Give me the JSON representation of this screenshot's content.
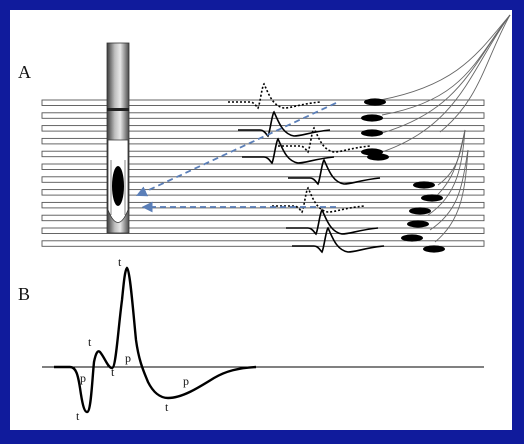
{
  "panels": {
    "a_label": "A",
    "b_label": "B"
  },
  "waveform_labels": {
    "first_trough": "t",
    "first_phase": "p",
    "first_peak": "t",
    "second_trough": "t",
    "second_phase": "p",
    "main_peak": "t",
    "slow_trough": "t",
    "late_phase": "p"
  },
  "colors": {
    "frame": "#101b9c",
    "panel": "#ffffff",
    "propagation_arrow": "#5b7fb8",
    "fiber_outline": "#555555",
    "endplate": "#000000"
  },
  "icons": {
    "electrode": "needle-electrode-icon",
    "endplate": "motor-endplate-icon"
  }
}
